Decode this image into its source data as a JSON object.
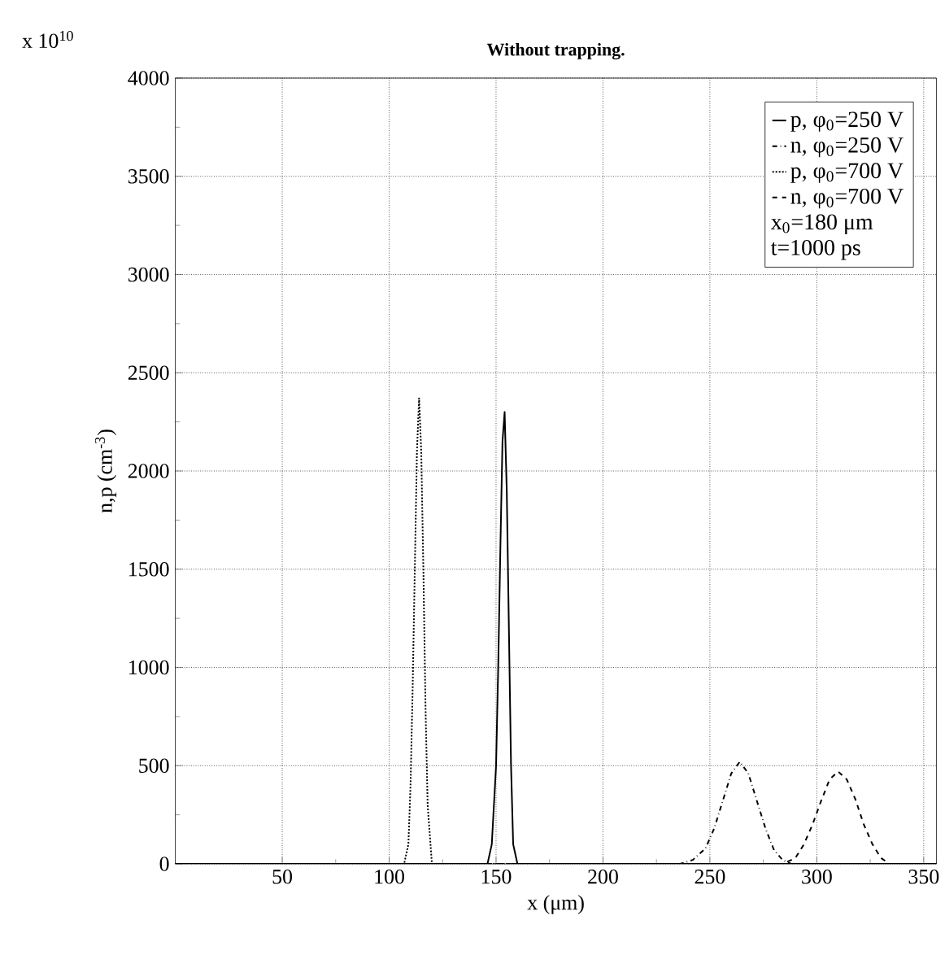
{
  "chart_data": {
    "type": "line",
    "title": "Without trapping.",
    "xlabel": "x (μm)",
    "ylabel": "n,p (cm$^{-3}$)",
    "annotations": [
      "x 10$^{10}$",
      "x$_{0}$=180 μm",
      "t=1000 ps"
    ],
    "xlim": [
      0,
      356
    ],
    "ylim": [
      0,
      4000
    ],
    "xticks": [
      50,
      100,
      150,
      200,
      250,
      300,
      350
    ],
    "yticks": [
      0,
      500,
      1000,
      1500,
      2000,
      2500,
      3000,
      3500,
      4000
    ],
    "grid": true,
    "legend": "top right",
    "series": [
      {
        "name": "p, φ$_{0}$=250 V",
        "color": "#000000",
        "line_style": "solid",
        "x": [
          0,
          146,
          148,
          150,
          151,
          152,
          153,
          154,
          155,
          156,
          157,
          158,
          160,
          356
        ],
        "values": [
          0,
          0,
          100,
          500,
          1000,
          1600,
          2150,
          2300,
          1900,
          1200,
          500,
          100,
          0,
          0
        ]
      },
      {
        "name": "n, φ$_{0}$=250 V",
        "color": "#000000",
        "line_style": "dashdotted",
        "x": [
          0,
          236,
          242,
          248,
          252,
          256,
          260,
          264,
          268,
          272,
          276,
          280,
          284,
          288,
          356
        ],
        "values": [
          0,
          0,
          20,
          80,
          180,
          320,
          460,
          520,
          460,
          320,
          180,
          70,
          20,
          0,
          0
        ]
      },
      {
        "name": "p, φ$_{0}$=700 V",
        "color": "#000000",
        "line_style": "dotted",
        "x": [
          0,
          107,
          109,
          110,
          111,
          112,
          113,
          114,
          115,
          116,
          117,
          118,
          120,
          356
        ],
        "values": [
          0,
          0,
          100,
          400,
          900,
          1500,
          2100,
          2370,
          2100,
          1500,
          800,
          300,
          0,
          0
        ]
      },
      {
        "name": "n, φ$_{0}$=700 V",
        "color": "#000000",
        "line_style": "dashed",
        "x": [
          0,
          284,
          290,
          294,
          298,
          302,
          306,
          310,
          314,
          318,
          322,
          326,
          330,
          334,
          356
        ],
        "values": [
          0,
          0,
          30,
          100,
          200,
          320,
          430,
          470,
          430,
          330,
          200,
          100,
          30,
          0,
          0
        ]
      }
    ]
  }
}
